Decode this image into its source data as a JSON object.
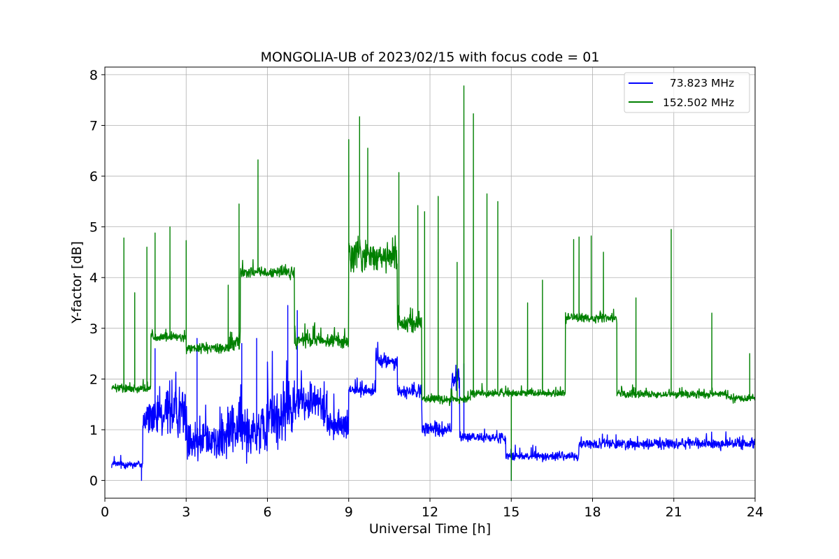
{
  "chart_data": {
    "type": "line",
    "title": "MONGOLIA-UB of 2023/02/15 with focus code = 01",
    "xlabel": "Universal Time [h]",
    "ylabel": "Y-factor [dB]",
    "xlim": [
      0,
      24
    ],
    "ylim": [
      -0.35,
      8.15
    ],
    "xticks": [
      0,
      3,
      6,
      9,
      12,
      15,
      18,
      21,
      24
    ],
    "yticks": [
      0,
      1,
      2,
      3,
      4,
      5,
      6,
      7,
      8
    ],
    "xtick_labels": [
      "0",
      "3",
      "6",
      "9",
      "12",
      "15",
      "18",
      "21",
      "24"
    ],
    "ytick_labels": [
      "0",
      "1",
      "2",
      "3",
      "4",
      "5",
      "6",
      "7",
      "8"
    ],
    "grid": true,
    "legend_position": "top-right",
    "series": [
      {
        "name": "  73.823 MHz",
        "color": "#0000ff",
        "x_start": 0.25,
        "x_end": 24,
        "segments": [
          {
            "x0": 0.25,
            "x1": 1.4,
            "mean": 0.32,
            "noise": 0.12
          },
          {
            "x0": 1.4,
            "x1": 2.2,
            "mean": 1.2,
            "noise": 0.55
          },
          {
            "x0": 2.2,
            "x1": 3.0,
            "mean": 1.35,
            "noise": 0.7
          },
          {
            "x0": 3.0,
            "x1": 4.5,
            "mean": 0.8,
            "noise": 0.55
          },
          {
            "x0": 4.5,
            "x1": 6.0,
            "mean": 1.0,
            "noise": 0.75
          },
          {
            "x0": 6.0,
            "x1": 7.0,
            "mean": 1.3,
            "noise": 0.8
          },
          {
            "x0": 7.0,
            "x1": 8.2,
            "mean": 1.55,
            "noise": 0.55
          },
          {
            "x0": 8.2,
            "x1": 9.0,
            "mean": 1.1,
            "noise": 0.4
          },
          {
            "x0": 9.0,
            "x1": 10.0,
            "mean": 1.78,
            "noise": 0.15
          },
          {
            "x0": 10.0,
            "x1": 10.8,
            "mean": 2.35,
            "noise": 0.22
          },
          {
            "x0": 10.8,
            "x1": 11.7,
            "mean": 1.75,
            "noise": 0.18
          },
          {
            "x0": 11.7,
            "x1": 12.8,
            "mean": 1.0,
            "noise": 0.2
          },
          {
            "x0": 12.8,
            "x1": 13.1,
            "mean": 2.0,
            "noise": 0.35
          },
          {
            "x0": 13.1,
            "x1": 14.8,
            "mean": 0.85,
            "noise": 0.15
          },
          {
            "x0": 14.8,
            "x1": 17.5,
            "mean": 0.48,
            "noise": 0.12
          },
          {
            "x0": 17.5,
            "x1": 24.0,
            "mean": 0.72,
            "noise": 0.14
          }
        ],
        "spikes": [
          {
            "x": 1.85,
            "y": 2.6
          },
          {
            "x": 3.4,
            "y": 2.8
          },
          {
            "x": 5.05,
            "y": 2.7
          },
          {
            "x": 5.6,
            "y": 2.8
          },
          {
            "x": 6.75,
            "y": 3.45
          },
          {
            "x": 7.1,
            "y": 3.35
          },
          {
            "x": 13.25,
            "y": 2.3
          },
          {
            "x": 15.0,
            "y": 0.0
          },
          {
            "x": 1.35,
            "y": 0.0
          }
        ]
      },
      {
        "name": "152.502 MHz",
        "color": "#008000",
        "x_start": 0.25,
        "x_end": 24,
        "segments": [
          {
            "x0": 0.25,
            "x1": 1.7,
            "mean": 1.82,
            "noise": 0.12
          },
          {
            "x0": 1.7,
            "x1": 3.0,
            "mean": 2.82,
            "noise": 0.12
          },
          {
            "x0": 3.0,
            "x1": 4.6,
            "mean": 2.6,
            "noise": 0.15
          },
          {
            "x0": 4.6,
            "x1": 5.0,
            "mean": 2.75,
            "noise": 0.35
          },
          {
            "x0": 5.0,
            "x1": 7.0,
            "mean": 4.1,
            "noise": 0.16
          },
          {
            "x0": 7.0,
            "x1": 9.0,
            "mean": 2.75,
            "noise": 0.2
          },
          {
            "x0": 9.0,
            "x1": 10.8,
            "mean": 4.45,
            "noise": 0.45
          },
          {
            "x0": 10.8,
            "x1": 11.7,
            "mean": 3.1,
            "noise": 0.25
          },
          {
            "x0": 11.7,
            "x1": 13.5,
            "mean": 1.6,
            "noise": 0.12
          },
          {
            "x0": 13.5,
            "x1": 17.0,
            "mean": 1.72,
            "noise": 0.1
          },
          {
            "x0": 17.0,
            "x1": 18.9,
            "mean": 3.2,
            "noise": 0.14
          },
          {
            "x0": 18.9,
            "x1": 23.0,
            "mean": 1.7,
            "noise": 0.1
          },
          {
            "x0": 23.0,
            "x1": 24.0,
            "mean": 1.62,
            "noise": 0.1
          }
        ],
        "spikes": [
          {
            "x": 0.7,
            "y": 4.78
          },
          {
            "x": 1.1,
            "y": 3.7
          },
          {
            "x": 1.55,
            "y": 4.6
          },
          {
            "x": 1.85,
            "y": 4.88
          },
          {
            "x": 2.4,
            "y": 5.0
          },
          {
            "x": 3.0,
            "y": 4.73
          },
          {
            "x": 4.55,
            "y": 3.85
          },
          {
            "x": 5.65,
            "y": 6.32
          },
          {
            "x": 4.95,
            "y": 5.45
          },
          {
            "x": 9.0,
            "y": 6.72
          },
          {
            "x": 9.4,
            "y": 7.17
          },
          {
            "x": 9.7,
            "y": 6.55
          },
          {
            "x": 10.85,
            "y": 6.07
          },
          {
            "x": 11.55,
            "y": 5.42
          },
          {
            "x": 11.8,
            "y": 5.3
          },
          {
            "x": 12.3,
            "y": 5.6
          },
          {
            "x": 13.0,
            "y": 4.3
          },
          {
            "x": 13.25,
            "y": 7.78
          },
          {
            "x": 13.6,
            "y": 7.23
          },
          {
            "x": 14.1,
            "y": 5.65
          },
          {
            "x": 14.5,
            "y": 5.5
          },
          {
            "x": 15.6,
            "y": 3.5
          },
          {
            "x": 16.15,
            "y": 3.95
          },
          {
            "x": 17.3,
            "y": 4.75
          },
          {
            "x": 17.5,
            "y": 4.8
          },
          {
            "x": 17.95,
            "y": 4.82
          },
          {
            "x": 18.4,
            "y": 4.5
          },
          {
            "x": 19.6,
            "y": 3.6
          },
          {
            "x": 20.9,
            "y": 4.95
          },
          {
            "x": 22.4,
            "y": 3.3
          },
          {
            "x": 23.8,
            "y": 2.5
          },
          {
            "x": 15.0,
            "y": 0.0
          }
        ]
      }
    ]
  }
}
